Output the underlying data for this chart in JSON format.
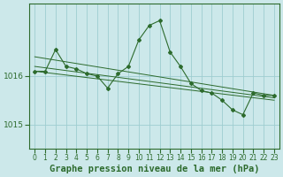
{
  "background_color": "#cce8ea",
  "grid_color": "#9ecdd0",
  "line_color": "#2d6b2d",
  "xlabel": "Graphe pression niveau de la mer (hPa)",
  "xlabel_fontsize": 7.5,
  "xtick_fontsize": 5.5,
  "ytick_fontsize": 6.5,
  "xlim": [
    -0.5,
    23.5
  ],
  "ylim": [
    1014.5,
    1017.5
  ],
  "yticks": [
    1015,
    1016
  ],
  "xticks": [
    0,
    1,
    2,
    3,
    4,
    5,
    6,
    7,
    8,
    9,
    10,
    11,
    12,
    13,
    14,
    15,
    16,
    17,
    18,
    19,
    20,
    21,
    22,
    23
  ],
  "line_main": {
    "x": [
      0,
      1,
      2,
      3,
      4,
      5,
      6,
      7,
      8,
      9,
      10,
      11,
      12,
      13,
      14,
      15,
      16,
      17,
      18,
      19,
      20,
      21,
      22,
      23
    ],
    "y": [
      1016.1,
      1016.1,
      1016.55,
      1016.2,
      1016.15,
      1016.05,
      1016.0,
      1015.75,
      1016.05,
      1016.2,
      1016.75,
      1017.05,
      1017.15,
      1016.5,
      1016.2,
      1015.85,
      1015.7,
      1015.65,
      1015.5,
      1015.3,
      1015.2,
      1015.65,
      1015.6,
      1015.6
    ]
  },
  "line_trend1": {
    "x": [
      0,
      23
    ],
    "y": [
      1016.4,
      1015.6
    ]
  },
  "line_trend2": {
    "x": [
      0,
      23
    ],
    "y": [
      1016.2,
      1015.55
    ]
  },
  "line_trend3": {
    "x": [
      0,
      23
    ],
    "y": [
      1016.1,
      1015.5
    ]
  }
}
